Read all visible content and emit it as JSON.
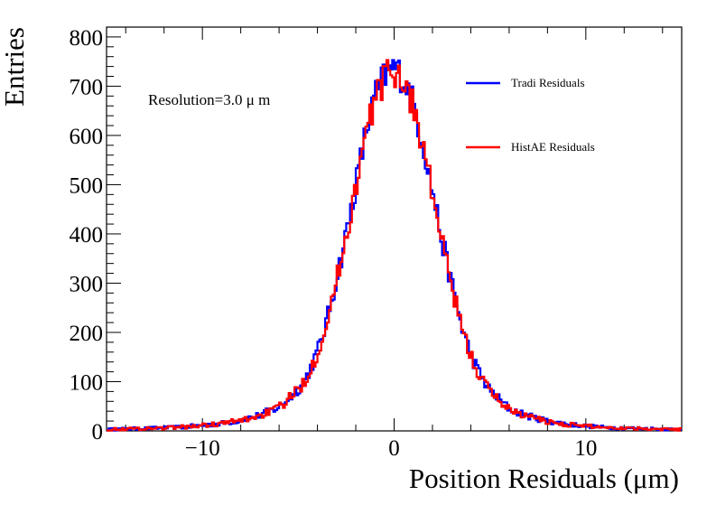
{
  "chart_data": {
    "type": "line",
    "title": "",
    "xlabel": "Position Residuals (μm)",
    "ylabel": "Entries",
    "xlim": [
      -15,
      15
    ],
    "ylim": [
      0,
      820
    ],
    "xticks": [
      -10,
      0,
      10
    ],
    "xtick_labels": [
      "−10",
      "0",
      "10"
    ],
    "yticks": [
      0,
      100,
      200,
      300,
      400,
      500,
      600,
      700,
      800
    ],
    "ytick_labels": [
      "0",
      "100",
      "200",
      "300",
      "400",
      "500",
      "600",
      "700",
      "800"
    ],
    "grid": false,
    "legend_position": "top-right",
    "annotation": "Resolution=3.0 μ m",
    "x": [
      -15,
      -14,
      -13,
      -12,
      -11,
      -10,
      -9,
      -8,
      -7,
      -6,
      -5,
      -4.5,
      -4,
      -3.5,
      -3,
      -2.5,
      -2,
      -1.5,
      -1,
      -0.5,
      0,
      0.5,
      1,
      1.5,
      2,
      2.5,
      3,
      3.5,
      4,
      4.5,
      5,
      6,
      7,
      8,
      9,
      10,
      11,
      12,
      13,
      14,
      15
    ],
    "series": [
      {
        "name": "Tradi Residuals",
        "color": "#0000ff",
        "values": [
          3,
          4,
          5,
          6,
          8,
          11,
          15,
          22,
          32,
          48,
          85,
          115,
          160,
          225,
          310,
          400,
          500,
          600,
          680,
          720,
          740,
          715,
          665,
          585,
          490,
          385,
          300,
          215,
          155,
          112,
          82,
          45,
          30,
          20,
          14,
          10,
          7,
          6,
          5,
          4,
          3
        ]
      },
      {
        "name": "HistAE Residuals",
        "color": "#ff0000",
        "values": [
          3,
          4,
          5,
          6,
          8,
          11,
          15,
          21,
          31,
          47,
          83,
          113,
          158,
          222,
          305,
          395,
          495,
          595,
          675,
          715,
          735,
          710,
          660,
          580,
          485,
          380,
          295,
          212,
          152,
          110,
          80,
          44,
          29,
          19,
          13,
          10,
          7,
          6,
          5,
          4,
          3
        ]
      }
    ]
  }
}
